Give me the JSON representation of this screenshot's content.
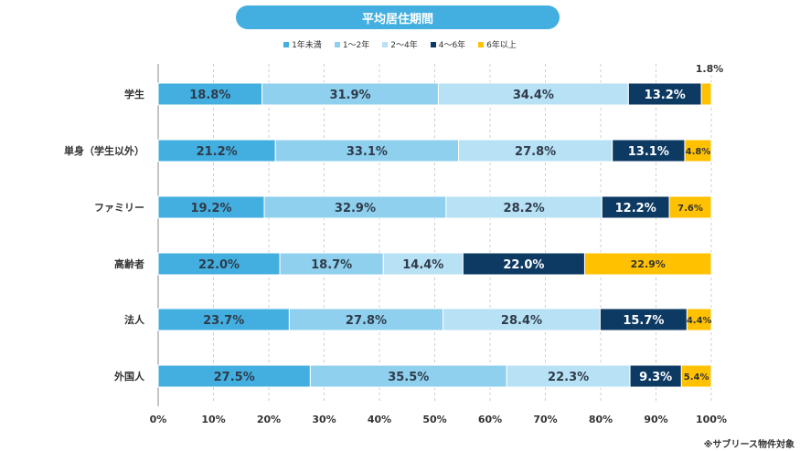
{
  "chart_data": {
    "type": "bar",
    "orientation": "horizontal",
    "stacked": true,
    "title": "平均居住期間",
    "categories": [
      "学生",
      "単身（学生以外）",
      "ファミリー",
      "高齢者",
      "法人",
      "外国人"
    ],
    "series": [
      {
        "name": "1年未満",
        "color": "#43afe0",
        "values": [
          18.8,
          21.2,
          19.2,
          22.0,
          23.7,
          27.5
        ]
      },
      {
        "name": "1～2年",
        "color": "#8fd0ee",
        "values": [
          31.9,
          33.1,
          32.9,
          18.7,
          27.8,
          35.5
        ]
      },
      {
        "name": "2～4年",
        "color": "#b7e1f4",
        "values": [
          34.4,
          27.8,
          28.2,
          14.4,
          28.4,
          22.3
        ]
      },
      {
        "name": "4～6年",
        "color": "#0d3a63",
        "values": [
          13.2,
          13.1,
          12.2,
          22.0,
          15.7,
          9.3
        ]
      },
      {
        "name": "6年以上",
        "color": "#ffc100",
        "values": [
          1.8,
          4.8,
          7.6,
          22.9,
          4.4,
          5.4
        ]
      }
    ],
    "value_labels": [
      [
        "18.8%",
        "31.9%",
        "34.4%",
        "13.2%",
        "1.8%"
      ],
      [
        "21.2%",
        "33.1%",
        "27.8%",
        "13.1%",
        "4.8%"
      ],
      [
        "19.2%",
        "32.9%",
        "28.2%",
        "12.2%",
        "7.6%"
      ],
      [
        "22.0%",
        "18.7%",
        "14.4%",
        "22.0%",
        "22.9%"
      ],
      [
        "23.7%",
        "27.8%",
        "28.4%",
        "15.7%",
        "4.4%"
      ],
      [
        "27.5%",
        "35.5%",
        "22.3%",
        "9.3%",
        "5.4%"
      ]
    ],
    "xlim": [
      0,
      100
    ],
    "x_ticks": [
      "0%",
      "10%",
      "20%",
      "30%",
      "40%",
      "50%",
      "60%",
      "70%",
      "80%",
      "90%",
      "100%"
    ],
    "grid": "vertical-dashed",
    "legend_position": "top"
  },
  "note": "※サブリース物件対象"
}
